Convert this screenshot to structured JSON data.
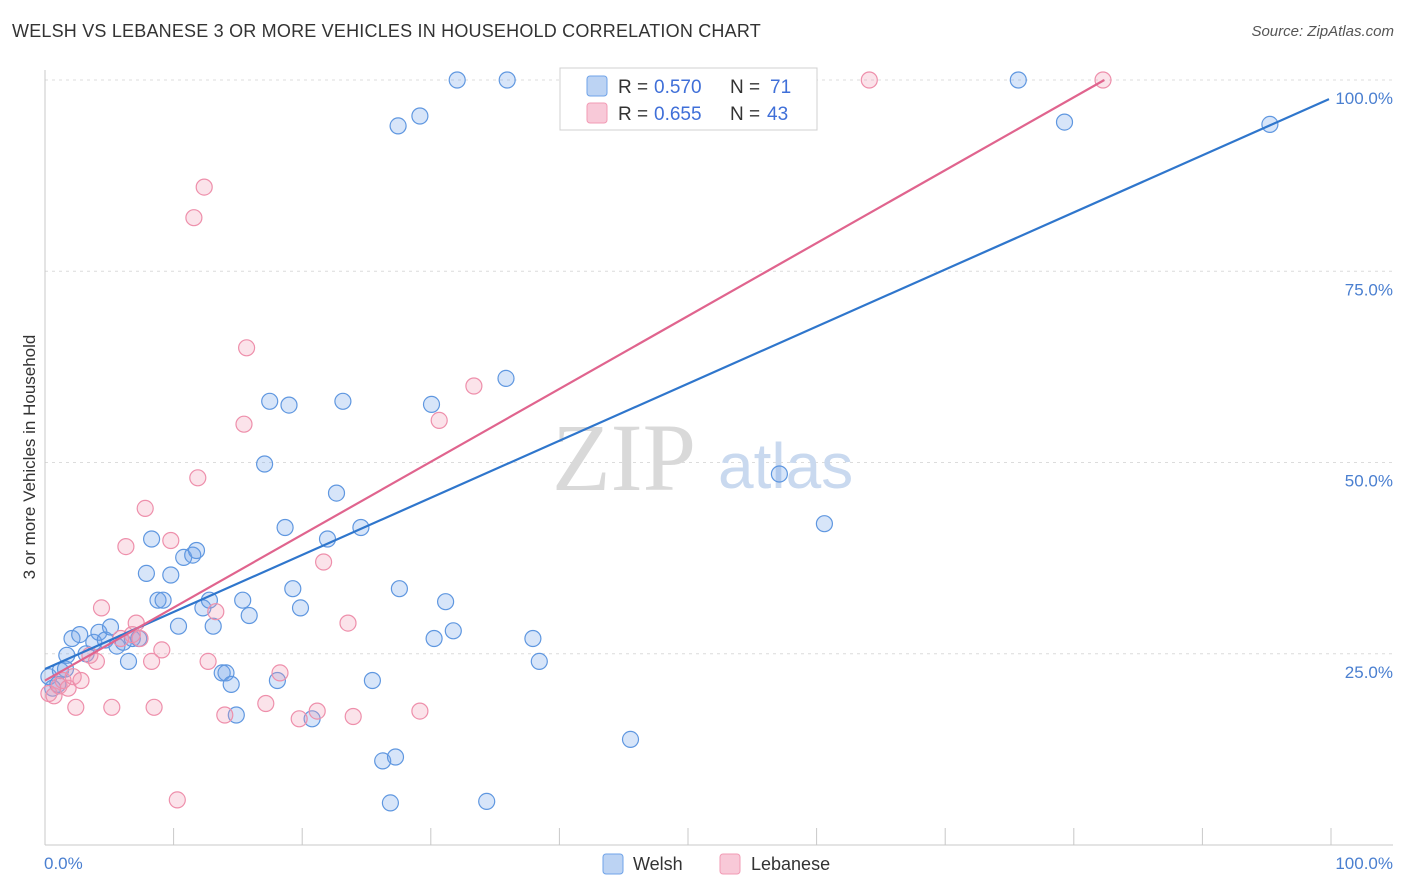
{
  "chart_data": {
    "type": "scatter",
    "title": "WELSH VS LEBANESE 3 OR MORE VEHICLES IN HOUSEHOLD CORRELATION CHART",
    "source": "Source: ZipAtlas.com",
    "xlabel": "",
    "ylabel": "3 or more Vehicles in Household",
    "xlim": [
      0,
      100
    ],
    "ylim": [
      0,
      102
    ],
    "x_tick_labels": [
      "0.0%",
      "100.0%"
    ],
    "y_tick_labels": [
      {
        "value": 25,
        "label": "25.0%"
      },
      {
        "value": 50,
        "label": "50.0%"
      },
      {
        "value": 75,
        "label": "75.0%"
      },
      {
        "value": 100,
        "label": "100.0%"
      }
    ],
    "watermark": {
      "part1": "ZIP",
      "part2": "atlas"
    },
    "legend": [
      {
        "name": "Welsh",
        "r_label": "R =",
        "r": "0.570",
        "n_label": "N =",
        "n": "71",
        "color": "#6fa3e8"
      },
      {
        "name": "Lebanese",
        "r_label": "R =",
        "r": "0.655",
        "n_label": "N =",
        "n": "43",
        "color": "#f29bb5"
      }
    ],
    "series": [
      {
        "name": "Welsh",
        "color": "#6fa3e8",
        "trendline": {
          "color": "#2f76cc",
          "x": [
            0,
            100
          ],
          "y": [
            23,
            97.5
          ]
        },
        "points": [
          [
            0.3,
            22
          ],
          [
            0.6,
            20.5
          ],
          [
            1,
            21
          ],
          [
            1.2,
            22.8
          ],
          [
            1.6,
            23
          ],
          [
            1.7,
            24.8
          ],
          [
            2.1,
            27
          ],
          [
            2.7,
            27.5
          ],
          [
            3.2,
            25
          ],
          [
            3.8,
            26.5
          ],
          [
            4.2,
            27.8
          ],
          [
            4.7,
            26.8
          ],
          [
            5.1,
            28.5
          ],
          [
            5.6,
            26
          ],
          [
            6.1,
            26.5
          ],
          [
            6.5,
            24
          ],
          [
            6.8,
            27
          ],
          [
            7.3,
            27
          ],
          [
            7.9,
            35.5
          ],
          [
            8.3,
            40
          ],
          [
            8.8,
            32
          ],
          [
            9.2,
            32
          ],
          [
            9.8,
            35.3
          ],
          [
            10.4,
            28.6
          ],
          [
            10.8,
            37.6
          ],
          [
            11.5,
            37.9
          ],
          [
            11.8,
            38.5
          ],
          [
            12.3,
            31
          ],
          [
            12.8,
            32
          ],
          [
            13.1,
            28.6
          ],
          [
            13.8,
            22.5
          ],
          [
            14.1,
            22.5
          ],
          [
            14.5,
            21
          ],
          [
            14.9,
            17
          ],
          [
            15.9,
            30
          ],
          [
            15.4,
            32
          ],
          [
            17.1,
            49.8
          ],
          [
            17.5,
            58
          ],
          [
            18.1,
            21.5
          ],
          [
            18.7,
            41.5
          ],
          [
            19,
            57.5
          ],
          [
            19.3,
            33.5
          ],
          [
            19.9,
            31
          ],
          [
            20.8,
            16.5
          ],
          [
            22,
            40
          ],
          [
            22.7,
            46
          ],
          [
            23.2,
            58
          ],
          [
            24.6,
            41.5
          ],
          [
            25.5,
            21.5
          ],
          [
            26.3,
            11
          ],
          [
            27.3,
            11.5
          ],
          [
            26.9,
            5.5
          ],
          [
            27.6,
            33.5
          ],
          [
            27.5,
            94
          ],
          [
            29.2,
            95.3
          ],
          [
            30.1,
            57.6
          ],
          [
            30.3,
            27
          ],
          [
            31.2,
            31.8
          ],
          [
            31.8,
            28
          ],
          [
            32.1,
            100
          ],
          [
            34.4,
            5.7
          ],
          [
            35.9,
            61
          ],
          [
            36,
            100
          ],
          [
            38,
            27
          ],
          [
            38.5,
            24
          ],
          [
            45.6,
            13.8
          ],
          [
            57.2,
            48.5
          ],
          [
            60.7,
            42
          ],
          [
            75.8,
            100
          ],
          [
            79.4,
            94.5
          ],
          [
            95.4,
            94.2
          ]
        ]
      },
      {
        "name": "Lebanese",
        "color": "#f29bb5",
        "trendline": {
          "color": "#e0648e",
          "x": [
            0,
            82.5
          ],
          "y": [
            21.5,
            100
          ]
        },
        "points": [
          [
            0.3,
            19.8
          ],
          [
            0.7,
            19.5
          ],
          [
            1.1,
            20.8
          ],
          [
            1.4,
            21.5
          ],
          [
            1.8,
            20.5
          ],
          [
            2.2,
            22
          ],
          [
            2.4,
            18
          ],
          [
            2.8,
            21.5
          ],
          [
            3.5,
            24.8
          ],
          [
            4,
            24
          ],
          [
            4.4,
            31
          ],
          [
            5.2,
            18
          ],
          [
            5.9,
            27
          ],
          [
            6.3,
            39
          ],
          [
            6.8,
            27.5
          ],
          [
            7.1,
            29
          ],
          [
            7.4,
            27
          ],
          [
            7.8,
            44
          ],
          [
            8.3,
            24
          ],
          [
            8.5,
            18
          ],
          [
            9.1,
            25.5
          ],
          [
            9.8,
            39.8
          ],
          [
            10.3,
            5.9
          ],
          [
            11.6,
            82
          ],
          [
            12.4,
            86
          ],
          [
            11.9,
            48
          ],
          [
            12.7,
            24
          ],
          [
            13.3,
            30.5
          ],
          [
            14,
            17
          ],
          [
            15.5,
            55
          ],
          [
            15.7,
            65
          ],
          [
            17.2,
            18.5
          ],
          [
            18.3,
            22.5
          ],
          [
            19.8,
            16.5
          ],
          [
            21.2,
            17.5
          ],
          [
            21.7,
            37
          ],
          [
            23.6,
            29
          ],
          [
            24,
            16.8
          ],
          [
            29.2,
            17.5
          ],
          [
            30.7,
            55.5
          ],
          [
            33.4,
            60
          ],
          [
            64.2,
            100
          ],
          [
            82.4,
            100
          ]
        ]
      }
    ]
  }
}
